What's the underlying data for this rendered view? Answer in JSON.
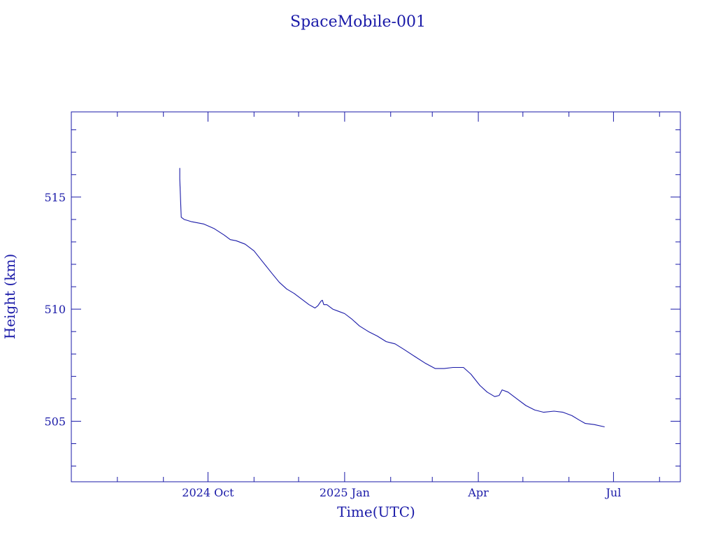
{
  "colors": {
    "ink": "#1a1aa8",
    "background": "#ffffff"
  },
  "chart_data": {
    "type": "line",
    "title": "SpaceMobile-001",
    "xlabel": "Time(UTC)",
    "ylabel": "Height (km)",
    "x_is_date": true,
    "xlim": [
      "2024-07-01",
      "2025-08-15"
    ],
    "ylim": [
      502.3,
      518.8
    ],
    "grid": false,
    "x_ticks": [
      {
        "date": "2024-10-01",
        "label": "2024 Oct"
      },
      {
        "date": "2025-01-01",
        "label": "2025 Jan"
      },
      {
        "date": "2025-04-01",
        "label": "Apr"
      },
      {
        "date": "2025-07-01",
        "label": "Jul"
      }
    ],
    "x_minor_ticks": [
      "2024-08-01",
      "2024-09-01",
      "2024-11-01",
      "2024-12-01",
      "2025-02-01",
      "2025-03-01",
      "2025-05-01",
      "2025-06-01",
      "2025-08-01"
    ],
    "y_ticks": [
      {
        "value": 505,
        "label": "505"
      },
      {
        "value": 510,
        "label": "510"
      },
      {
        "value": 515,
        "label": "515"
      }
    ],
    "y_minor_ticks": [
      503,
      504,
      506,
      507,
      508,
      509,
      511,
      512,
      513,
      514,
      516,
      517,
      518
    ],
    "series": [
      {
        "points": [
          [
            "2024-09-12",
            516.3
          ],
          [
            "2024-09-12",
            515.8
          ],
          [
            "2024-09-13",
            514.1
          ],
          [
            "2024-09-15",
            514.0
          ],
          [
            "2024-09-20",
            513.9
          ],
          [
            "2024-09-28",
            513.8
          ],
          [
            "2024-10-05",
            513.6
          ],
          [
            "2024-10-12",
            513.3
          ],
          [
            "2024-10-16",
            513.1
          ],
          [
            "2024-10-20",
            513.05
          ],
          [
            "2024-10-26",
            512.9
          ],
          [
            "2024-11-01",
            512.6
          ],
          [
            "2024-11-07",
            512.1
          ],
          [
            "2024-11-13",
            511.6
          ],
          [
            "2024-11-18",
            511.2
          ],
          [
            "2024-11-23",
            510.9
          ],
          [
            "2024-11-28",
            510.7
          ],
          [
            "2024-12-03",
            510.45
          ],
          [
            "2024-12-08",
            510.2
          ],
          [
            "2024-12-12",
            510.05
          ],
          [
            "2024-12-14",
            510.15
          ],
          [
            "2024-12-16",
            510.35
          ],
          [
            "2024-12-17",
            510.4
          ],
          [
            "2024-12-18",
            510.2
          ],
          [
            "2024-12-20",
            510.2
          ],
          [
            "2024-12-24",
            510.0
          ],
          [
            "2024-12-28",
            509.9
          ],
          [
            "2025-01-01",
            509.8
          ],
          [
            "2025-01-06",
            509.55
          ],
          [
            "2025-01-11",
            509.25
          ],
          [
            "2025-01-17",
            509.0
          ],
          [
            "2025-01-23",
            508.8
          ],
          [
            "2025-01-29",
            508.55
          ],
          [
            "2025-02-01",
            508.5
          ],
          [
            "2025-02-04",
            508.45
          ],
          [
            "2025-02-10",
            508.2
          ],
          [
            "2025-02-17",
            507.9
          ],
          [
            "2025-02-24",
            507.6
          ],
          [
            "2025-03-03",
            507.35
          ],
          [
            "2025-03-09",
            507.35
          ],
          [
            "2025-03-15",
            507.4
          ],
          [
            "2025-03-22",
            507.4
          ],
          [
            "2025-03-27",
            507.1
          ],
          [
            "2025-04-02",
            506.6
          ],
          [
            "2025-04-07",
            506.3
          ],
          [
            "2025-04-12",
            506.1
          ],
          [
            "2025-04-15",
            506.15
          ],
          [
            "2025-04-17",
            506.4
          ],
          [
            "2025-04-21",
            506.3
          ],
          [
            "2025-04-27",
            506.0
          ],
          [
            "2025-05-03",
            505.7
          ],
          [
            "2025-05-09",
            505.5
          ],
          [
            "2025-05-15",
            505.4
          ],
          [
            "2025-05-22",
            505.45
          ],
          [
            "2025-05-28",
            505.4
          ],
          [
            "2025-06-03",
            505.25
          ],
          [
            "2025-06-08",
            505.05
          ],
          [
            "2025-06-12",
            504.9
          ],
          [
            "2025-06-18",
            504.85
          ],
          [
            "2025-06-25",
            504.75
          ]
        ]
      }
    ]
  }
}
